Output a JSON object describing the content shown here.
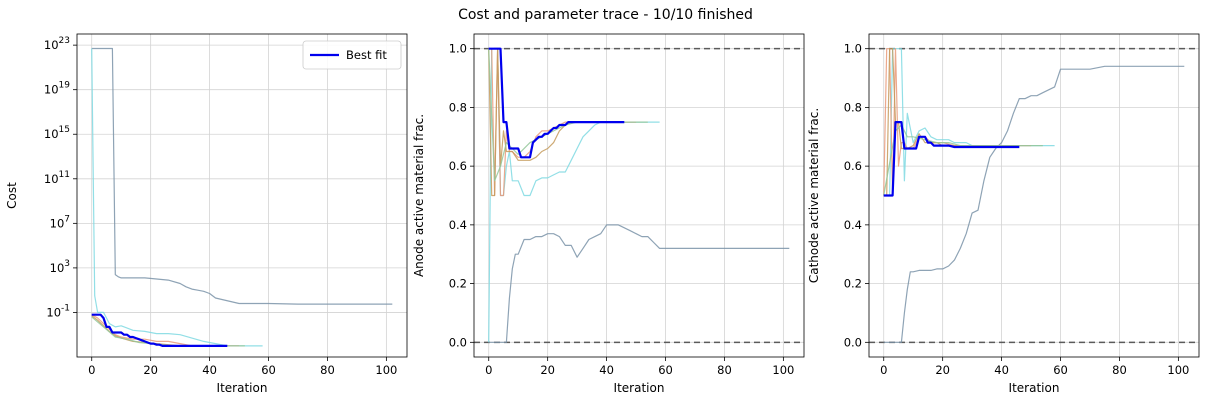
{
  "figure": {
    "title": "Cost and parameter trace - 10/10 finished"
  },
  "colors": {
    "best": "#0000ee",
    "grid": "#d3d3d3",
    "refline": "#5a5a5a",
    "traces": [
      "#7a93a8",
      "#7fd9e2",
      "#e89a7a",
      "#c49a5a",
      "#93c79a"
    ]
  },
  "chart_data": [
    {
      "type": "line",
      "ylabel": "Cost",
      "xlabel": "Iteration",
      "yscale": "log",
      "xlim": [
        -5,
        107
      ],
      "ylim_log10": [
        -5,
        24
      ],
      "x_ticks": [
        0,
        20,
        40,
        60,
        80,
        100
      ],
      "y_tick_exponents": [
        -1,
        3,
        7,
        11,
        15,
        19,
        23
      ],
      "y_tick_base": "10",
      "grid": true,
      "legend": {
        "position": "top-right",
        "entries": [
          "Best fit"
        ]
      },
      "series": [
        {
          "x": [
            0,
            1,
            2,
            3,
            4,
            5,
            6,
            7,
            8,
            9,
            10,
            14,
            18,
            22,
            26,
            30,
            32,
            34,
            36,
            38,
            40,
            42,
            50,
            60,
            70,
            80,
            90,
            102
          ],
          "y_log10": [
            22.7,
            22.7,
            22.7,
            22.7,
            22.7,
            22.7,
            22.7,
            22.7,
            2.4,
            2.2,
            2.1,
            2.1,
            2.1,
            2.0,
            1.9,
            1.6,
            1.3,
            1.1,
            1.0,
            0.9,
            0.7,
            0.3,
            -0.2,
            -0.2,
            -0.25,
            -0.25,
            -0.25,
            -0.25
          ]
        },
        {
          "x": [
            0,
            1,
            2,
            3,
            4,
            5,
            6,
            8,
            10,
            14,
            18,
            22,
            26,
            30,
            34,
            38,
            42,
            46,
            50,
            54,
            58
          ],
          "y_log10": [
            22.7,
            0.5,
            -1.0,
            -1.0,
            -1.0,
            -1.5,
            -2.0,
            -2.3,
            -2.2,
            -2.6,
            -2.7,
            -2.9,
            -2.9,
            -3.0,
            -3.3,
            -3.6,
            -3.8,
            -4.0,
            -4.0,
            -4.0,
            -4.0
          ]
        },
        {
          "x": [
            0,
            2,
            4,
            6,
            8,
            10,
            14,
            18,
            22,
            26,
            30,
            34,
            38,
            42,
            46,
            50
          ],
          "y_log10": [
            -1.2,
            -1.5,
            -2.0,
            -2.5,
            -3.0,
            -3.2,
            -3.4,
            -3.4,
            -3.6,
            -3.6,
            -3.8,
            -4.0,
            -4.0,
            -4.0,
            -4.0,
            -4.0
          ]
        },
        {
          "x": [
            0,
            2,
            4,
            6,
            8,
            10,
            14,
            18,
            22,
            26,
            30,
            34,
            38,
            42,
            46
          ],
          "y_log10": [
            -1.3,
            -1.7,
            -2.2,
            -2.7,
            -3.1,
            -3.3,
            -3.6,
            -3.7,
            -3.8,
            -3.9,
            -4.0,
            -4.0,
            -4.0,
            -4.0,
            -4.0
          ]
        },
        {
          "x": [
            0,
            4,
            8,
            12,
            16,
            20,
            24,
            28,
            32,
            36,
            40,
            44,
            48,
            52
          ],
          "y_log10": [
            -1.4,
            -2.3,
            -3.2,
            -3.4,
            -3.7,
            -3.8,
            -3.9,
            -4.0,
            -4.0,
            -4.0,
            -4.0,
            -4.0,
            -4.0,
            -4.0
          ]
        },
        {
          "name": "Best fit",
          "x": [
            0,
            1,
            2,
            3,
            4,
            5,
            6,
            7,
            8,
            9,
            10,
            11,
            12,
            13,
            14,
            15,
            16,
            17,
            18,
            19,
            20,
            21,
            22,
            23,
            24,
            25,
            26,
            27,
            28,
            29,
            30,
            35,
            40,
            46
          ],
          "y_log10": [
            -1.2,
            -1.2,
            -1.2,
            -1.2,
            -1.5,
            -2.3,
            -2.3,
            -2.8,
            -2.8,
            -2.8,
            -2.8,
            -3.0,
            -3.0,
            -3.2,
            -3.2,
            -3.3,
            -3.4,
            -3.5,
            -3.6,
            -3.7,
            -3.8,
            -3.8,
            -3.9,
            -3.9,
            -4.0,
            -4.0,
            -4.0,
            -4.0,
            -4.0,
            -4.0,
            -4.0,
            -4.0,
            -4.0,
            -4.0
          ]
        }
      ]
    },
    {
      "type": "line",
      "ylabel": "Anode active material frac.",
      "xlabel": "Iteration",
      "xlim": [
        -5,
        107
      ],
      "ylim": [
        -0.05,
        1.05
      ],
      "x_ticks": [
        0,
        20,
        40,
        60,
        80,
        100
      ],
      "y_ticks": [
        "0.0",
        "0.2",
        "0.4",
        "0.6",
        "0.8",
        "1.0"
      ],
      "hlines": [
        0.0,
        1.0
      ],
      "grid": true,
      "series": [
        {
          "x": [
            0,
            4,
            6,
            7,
            8,
            9,
            10,
            12,
            14,
            16,
            18,
            20,
            22,
            24,
            26,
            28,
            30,
            32,
            34,
            36,
            38,
            40,
            42,
            44,
            46,
            48,
            50,
            52,
            54,
            56,
            58,
            60,
            62,
            70,
            80,
            90,
            102
          ],
          "y": [
            0,
            0,
            0,
            0.15,
            0.25,
            0.3,
            0.3,
            0.35,
            0.35,
            0.36,
            0.36,
            0.37,
            0.37,
            0.36,
            0.33,
            0.33,
            0.29,
            0.32,
            0.35,
            0.36,
            0.37,
            0.4,
            0.4,
            0.4,
            0.39,
            0.38,
            0.37,
            0.36,
            0.36,
            0.34,
            0.32,
            0.32,
            0.32,
            0.32,
            0.32,
            0.32,
            0.32
          ]
        },
        {
          "x": [
            0,
            1,
            2,
            3,
            4,
            5,
            6,
            7,
            8,
            10,
            12,
            14,
            16,
            18,
            20,
            22,
            24,
            26,
            28,
            30,
            32,
            34,
            36,
            38,
            42,
            46,
            50,
            54,
            58
          ],
          "y": [
            0,
            1.0,
            1.0,
            1.0,
            0.5,
            0.5,
            0.6,
            0.65,
            0.55,
            0.55,
            0.5,
            0.5,
            0.55,
            0.56,
            0.56,
            0.57,
            0.58,
            0.58,
            0.62,
            0.66,
            0.7,
            0.72,
            0.74,
            0.75,
            0.75,
            0.75,
            0.75,
            0.75,
            0.75
          ]
        },
        {
          "x": [
            0,
            1,
            2,
            3,
            4,
            5,
            6,
            7,
            8,
            10,
            12,
            14,
            16,
            18,
            20,
            22,
            24,
            26,
            28,
            30,
            34,
            38,
            42,
            46,
            50
          ],
          "y": [
            1.0,
            1.0,
            0.5,
            1.0,
            0.5,
            0.5,
            0.72,
            0.65,
            0.65,
            0.63,
            0.63,
            0.65,
            0.7,
            0.72,
            0.72,
            0.73,
            0.74,
            0.75,
            0.75,
            0.75,
            0.75,
            0.75,
            0.75,
            0.75,
            0.75
          ]
        },
        {
          "x": [
            0,
            1,
            2,
            3,
            4,
            5,
            6,
            8,
            10,
            12,
            14,
            16,
            18,
            20,
            22,
            24,
            26,
            28,
            30,
            34,
            38,
            42,
            46
          ],
          "y": [
            1.0,
            0.5,
            0.5,
            1.0,
            0.6,
            0.72,
            0.65,
            0.65,
            0.62,
            0.62,
            0.62,
            0.63,
            0.65,
            0.66,
            0.68,
            0.72,
            0.74,
            0.75,
            0.75,
            0.75,
            0.75,
            0.75,
            0.75
          ]
        },
        {
          "x": [
            0,
            2,
            4,
            6,
            8,
            10,
            14,
            18,
            22,
            26,
            30,
            34,
            38,
            42,
            46,
            50,
            54
          ],
          "y": [
            1.0,
            0.55,
            0.6,
            0.68,
            0.66,
            0.64,
            0.68,
            0.7,
            0.72,
            0.74,
            0.75,
            0.75,
            0.75,
            0.75,
            0.75,
            0.75,
            0.75
          ]
        },
        {
          "name": "Best fit",
          "x": [
            0,
            1,
            2,
            3,
            4,
            5,
            6,
            7,
            8,
            9,
            10,
            11,
            12,
            13,
            14,
            15,
            16,
            17,
            18,
            19,
            20,
            21,
            22,
            23,
            24,
            25,
            26,
            27,
            28,
            30,
            35,
            40,
            46
          ],
          "y": [
            1.0,
            1.0,
            1.0,
            1.0,
            1.0,
            0.75,
            0.75,
            0.66,
            0.66,
            0.66,
            0.66,
            0.63,
            0.63,
            0.63,
            0.63,
            0.68,
            0.69,
            0.7,
            0.7,
            0.71,
            0.71,
            0.72,
            0.73,
            0.73,
            0.74,
            0.74,
            0.74,
            0.75,
            0.75,
            0.75,
            0.75,
            0.75,
            0.75
          ]
        }
      ]
    },
    {
      "type": "line",
      "ylabel": "Cathode active material frac.",
      "xlabel": "Iteration",
      "xlim": [
        -5,
        107
      ],
      "ylim": [
        -0.05,
        1.05
      ],
      "x_ticks": [
        0,
        20,
        40,
        60,
        80,
        100
      ],
      "y_ticks": [
        "0.0",
        "0.2",
        "0.4",
        "0.6",
        "0.8",
        "1.0"
      ],
      "hlines": [
        0.0,
        1.0
      ],
      "grid": true,
      "series": [
        {
          "x": [
            0,
            4,
            6,
            7,
            8,
            9,
            10,
            12,
            14,
            16,
            18,
            20,
            22,
            24,
            26,
            28,
            30,
            32,
            34,
            36,
            38,
            40,
            42,
            44,
            46,
            48,
            50,
            52,
            54,
            56,
            58,
            60,
            65,
            70,
            75,
            80,
            90,
            102
          ],
          "y": [
            0,
            0,
            0,
            0.1,
            0.18,
            0.24,
            0.24,
            0.245,
            0.245,
            0.245,
            0.25,
            0.25,
            0.26,
            0.28,
            0.32,
            0.37,
            0.44,
            0.45,
            0.55,
            0.63,
            0.66,
            0.68,
            0.72,
            0.78,
            0.83,
            0.83,
            0.84,
            0.84,
            0.85,
            0.86,
            0.87,
            0.93,
            0.93,
            0.93,
            0.94,
            0.94,
            0.94,
            0.94
          ]
        },
        {
          "x": [
            0,
            1,
            2,
            3,
            4,
            5,
            6,
            7,
            8,
            10,
            12,
            14,
            16,
            18,
            20,
            22,
            24,
            26,
            28,
            30,
            34,
            38,
            42,
            46,
            50,
            54,
            58
          ],
          "y": [
            0.5,
            0.5,
            0.5,
            1.0,
            1.0,
            1.0,
            1.0,
            0.55,
            0.78,
            0.68,
            0.72,
            0.73,
            0.7,
            0.69,
            0.69,
            0.69,
            0.68,
            0.68,
            0.68,
            0.67,
            0.67,
            0.67,
            0.67,
            0.67,
            0.67,
            0.67,
            0.67
          ]
        },
        {
          "x": [
            0,
            1,
            2,
            3,
            4,
            5,
            6,
            7,
            8,
            10,
            12,
            14,
            16,
            18,
            20,
            24,
            28,
            32,
            36,
            40,
            46,
            50
          ],
          "y": [
            0.5,
            1.0,
            1.0,
            0.5,
            1.0,
            0.6,
            0.68,
            0.68,
            0.66,
            0.66,
            0.7,
            0.7,
            0.68,
            0.68,
            0.68,
            0.67,
            0.67,
            0.67,
            0.67,
            0.67,
            0.67,
            0.67
          ]
        },
        {
          "x": [
            0,
            1,
            2,
            3,
            4,
            5,
            6,
            8,
            10,
            12,
            14,
            16,
            18,
            20,
            24,
            28,
            32,
            36,
            40,
            46
          ],
          "y": [
            0.5,
            0.5,
            1.0,
            1.0,
            0.75,
            0.75,
            0.66,
            0.66,
            0.67,
            0.71,
            0.68,
            0.68,
            0.68,
            0.67,
            0.67,
            0.67,
            0.67,
            0.67,
            0.67,
            0.67
          ]
        },
        {
          "x": [
            0,
            4,
            6,
            8,
            10,
            14,
            18,
            22,
            26,
            30,
            34,
            38,
            42,
            46,
            50,
            54
          ],
          "y": [
            0.5,
            0.72,
            0.74,
            0.7,
            0.7,
            0.69,
            0.68,
            0.68,
            0.67,
            0.67,
            0.67,
            0.67,
            0.67,
            0.67,
            0.67,
            0.67
          ]
        },
        {
          "name": "Best fit",
          "x": [
            0,
            1,
            2,
            3,
            4,
            5,
            6,
            7,
            8,
            9,
            10,
            11,
            12,
            13,
            14,
            15,
            16,
            17,
            18,
            20,
            22,
            24,
            26,
            30,
            35,
            40,
            46
          ],
          "y": [
            0.5,
            0.5,
            0.5,
            0.5,
            0.75,
            0.75,
            0.75,
            0.66,
            0.66,
            0.66,
            0.66,
            0.66,
            0.7,
            0.7,
            0.7,
            0.68,
            0.68,
            0.67,
            0.67,
            0.67,
            0.67,
            0.665,
            0.665,
            0.665,
            0.665,
            0.665,
            0.665
          ]
        }
      ]
    }
  ]
}
